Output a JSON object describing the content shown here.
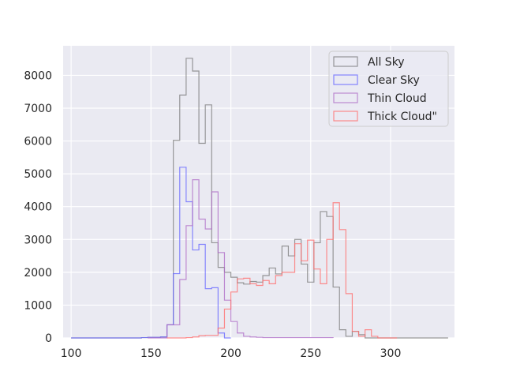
{
  "chart_data": {
    "type": "histogram",
    "title": "",
    "xlabel": "",
    "ylabel": "",
    "xlim": [
      95,
      340
    ],
    "ylim": [
      0,
      8900
    ],
    "xticks": [
      100,
      150,
      200,
      250,
      300
    ],
    "yticks": [
      0,
      1000,
      2000,
      3000,
      4000,
      5000,
      6000,
      7000,
      8000
    ],
    "grid": true,
    "legend_position": "top-right",
    "series": [
      {
        "name": "All Sky",
        "color": "#808080",
        "edges": [
          100,
          104,
          108,
          112,
          116,
          120,
          124,
          128,
          132,
          136,
          140,
          144,
          148,
          152,
          156,
          160,
          164,
          168,
          172,
          176,
          180,
          184,
          188,
          192,
          196,
          200,
          204,
          208,
          212,
          216,
          220,
          224,
          228,
          232,
          236,
          240,
          244,
          248,
          252,
          256,
          260,
          264,
          268,
          272,
          276,
          280,
          284,
          288,
          292,
          296,
          300,
          304,
          308,
          312,
          316,
          320,
          324,
          328,
          332,
          336
        ],
        "counts": [
          0,
          0,
          0,
          0,
          0,
          0,
          0,
          0,
          0,
          0,
          0,
          10,
          20,
          20,
          30,
          400,
          6020,
          7400,
          8520,
          8130,
          5930,
          7100,
          2900,
          2150,
          2000,
          1850,
          1680,
          1640,
          1720,
          1700,
          1900,
          2130,
          1950,
          2800,
          2500,
          3000,
          2250,
          1700,
          2900,
          3850,
          3700,
          1550,
          250,
          50,
          200,
          100,
          0,
          0,
          0,
          0,
          0,
          0,
          0,
          0,
          0,
          0,
          0,
          0,
          0
        ]
      },
      {
        "name": "Clear Sky",
        "color": "#6a6aff",
        "edges": [
          100,
          104,
          108,
          112,
          116,
          120,
          124,
          128,
          132,
          136,
          140,
          144,
          148,
          152,
          156,
          160,
          164,
          168,
          172,
          176,
          180,
          184,
          188,
          192,
          196,
          200
        ],
        "counts": [
          0,
          0,
          0,
          0,
          0,
          0,
          0,
          0,
          0,
          0,
          0,
          10,
          20,
          20,
          30,
          400,
          1960,
          5200,
          4150,
          2680,
          2850,
          1500,
          1530,
          150,
          0
        ]
      },
      {
        "name": "Thin Cloud",
        "color": "#b070c8",
        "edges": [
          148,
          152,
          156,
          160,
          164,
          168,
          172,
          176,
          180,
          184,
          188,
          192,
          196,
          200,
          204,
          208,
          212,
          216,
          220,
          224,
          228,
          232,
          236,
          240,
          244,
          248,
          252,
          256,
          260,
          264
        ],
        "counts": [
          0,
          0,
          0,
          400,
          400,
          1780,
          3420,
          4820,
          3620,
          3320,
          4450,
          2600,
          1150,
          500,
          150,
          50,
          30,
          20,
          10,
          10,
          10,
          10,
          10,
          10,
          10,
          10,
          10,
          10,
          10
        ]
      },
      {
        "name": "Thick Cloud\"",
        "color": "#ff7070",
        "edges": [
          160,
          164,
          168,
          172,
          176,
          180,
          184,
          188,
          192,
          196,
          200,
          204,
          208,
          212,
          216,
          220,
          224,
          228,
          232,
          236,
          240,
          244,
          248,
          252,
          256,
          260,
          264,
          268,
          272,
          276,
          280,
          284,
          288,
          292,
          296,
          300,
          304
        ],
        "counts": [
          0,
          0,
          0,
          10,
          30,
          70,
          80,
          80,
          300,
          880,
          1400,
          1800,
          1820,
          1650,
          1600,
          1750,
          1650,
          1900,
          2000,
          2000,
          2870,
          2350,
          2980,
          2100,
          1650,
          3000,
          4120,
          3300,
          1350,
          200,
          50,
          250,
          50,
          0,
          0,
          0
        ]
      }
    ]
  }
}
